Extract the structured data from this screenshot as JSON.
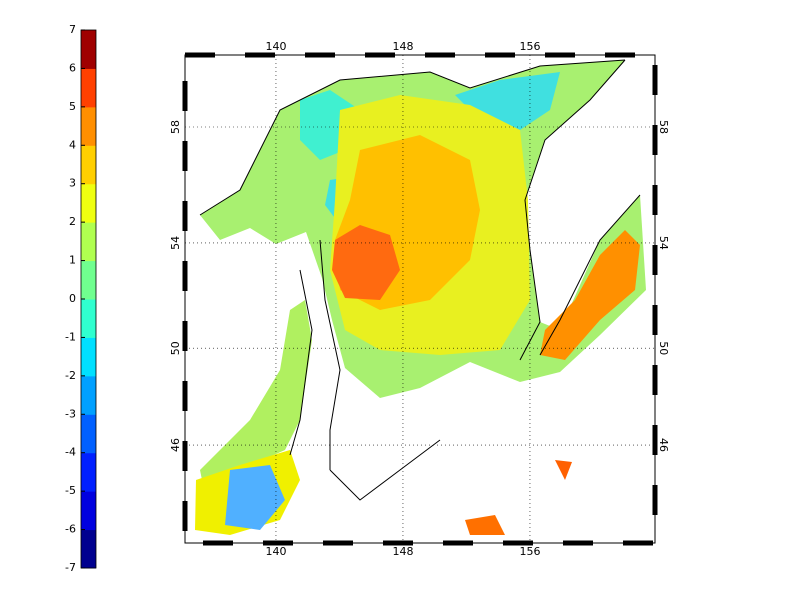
{
  "colorbar": {
    "clim": [
      -7,
      7
    ],
    "ticks": [
      -7,
      -6,
      -5,
      -4,
      -3,
      -2,
      -1,
      0,
      1,
      2,
      3,
      4,
      5,
      6,
      7
    ],
    "colors": [
      "#00008f",
      "#0000df",
      "#0020ff",
      "#0060ff",
      "#00a0ff",
      "#00e0ff",
      "#30ffcf",
      "#70ff8f",
      "#b0ff50",
      "#efff10",
      "#ffcf00",
      "#ff8f00",
      "#ff4000",
      "#9f0000"
    ]
  },
  "map": {
    "lon_ticks": [
      140,
      148,
      156
    ],
    "lat_ticks": [
      46,
      50,
      54,
      58
    ]
  }
}
